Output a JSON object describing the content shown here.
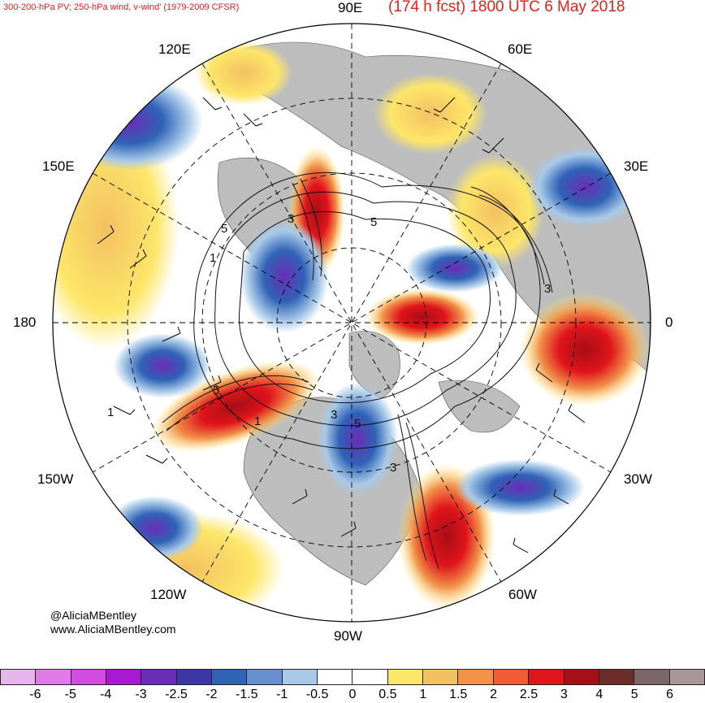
{
  "header": {
    "left": "300-200-hPa PV; 250-hPa wind, v-wind' (1979-2009 CFSR)",
    "right": "(174 h fcst) 1800 UTC 6 May 2018"
  },
  "longitude_labels": [
    "90E",
    "60E",
    "30E",
    "0",
    "30W",
    "60W",
    "90W",
    "120W",
    "150W",
    "180",
    "150E",
    "120E"
  ],
  "map_features": {
    "projection": "north-polar-stereographic",
    "contour_labels": [
      "5",
      "5",
      "3",
      "1",
      "1",
      "3",
      "5",
      "3",
      "1",
      "5",
      "3"
    ],
    "colors": {
      "land": "#bdbdbd",
      "ocean": "#ffffff",
      "contour": "#111111",
      "graticule": "#000000"
    }
  },
  "credits": {
    "handle": "@AliciaMBentley",
    "website": "www.AliciaMBentley.com"
  },
  "colorbar": {
    "colors": [
      "#e8b4ec",
      "#e07ae6",
      "#d14de0",
      "#a61ad0",
      "#6a2db7",
      "#3c37a4",
      "#2f63b6",
      "#6690cf",
      "#a8c9e8",
      "#ffffff",
      "#ffffff",
      "#fde669",
      "#f3c062",
      "#f1924a",
      "#ef5c35",
      "#e0141b",
      "#a50f16",
      "#6b2d2a",
      "#7d6668",
      "#a89698"
    ],
    "ticks": [
      "-6",
      "-5",
      "-4",
      "-3",
      "-2.5",
      "-2",
      "-1.5",
      "-1",
      "-0.5",
      "0",
      "0.5",
      "1",
      "1.5",
      "2",
      "2.5",
      "3",
      "4",
      "5",
      "6"
    ]
  }
}
